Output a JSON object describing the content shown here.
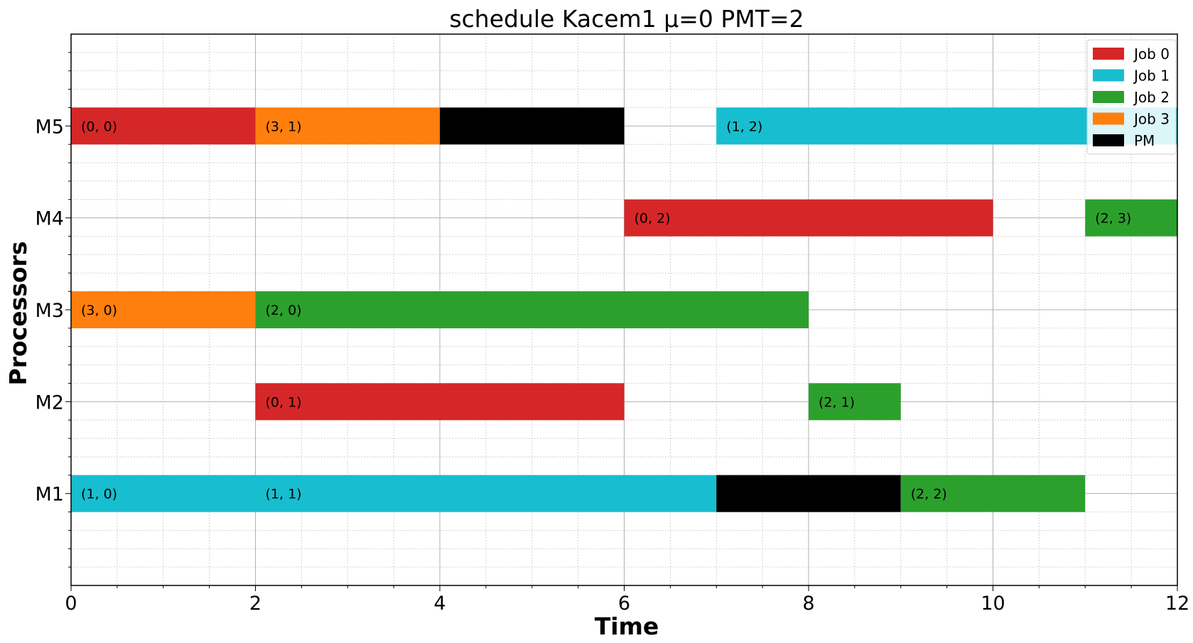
{
  "chart_data": {
    "type": "gantt",
    "title": "schedule Kacem1 μ=0 PMT=2",
    "xlabel": "Time",
    "ylabel": "Processors",
    "xlim": [
      0,
      12
    ],
    "x_ticks": [
      "0",
      "2",
      "4",
      "6",
      "8",
      "10",
      "12"
    ],
    "processors": [
      "M1",
      "M2",
      "M3",
      "M4",
      "M5"
    ],
    "grid": "major and minor",
    "legend_position": "top-right",
    "legend": [
      {
        "label": "Job 0",
        "color": "#d62728"
      },
      {
        "label": "Job 1",
        "color": "#17becf"
      },
      {
        "label": "Job 2",
        "color": "#2ca02c"
      },
      {
        "label": "Job 3",
        "color": "#ff7f0e"
      },
      {
        "label": "PM",
        "color": "#000000"
      }
    ],
    "tasks": [
      {
        "processor": "M5",
        "start": 0,
        "end": 2,
        "job": "Job 0",
        "label": "(0, 0)"
      },
      {
        "processor": "M5",
        "start": 2,
        "end": 4,
        "job": "Job 3",
        "label": "(3, 1)"
      },
      {
        "processor": "M5",
        "start": 4,
        "end": 6,
        "job": "PM",
        "label": ""
      },
      {
        "processor": "M5",
        "start": 7,
        "end": 12,
        "job": "Job 1",
        "label": "(1, 2)"
      },
      {
        "processor": "M4",
        "start": 6,
        "end": 10,
        "job": "Job 0",
        "label": "(0, 2)"
      },
      {
        "processor": "M4",
        "start": 11,
        "end": 12,
        "job": "Job 2",
        "label": "(2, 3)"
      },
      {
        "processor": "M3",
        "start": 0,
        "end": 2,
        "job": "Job 3",
        "label": "(3, 0)"
      },
      {
        "processor": "M3",
        "start": 2,
        "end": 8,
        "job": "Job 2",
        "label": "(2, 0)"
      },
      {
        "processor": "M2",
        "start": 2,
        "end": 6,
        "job": "Job 0",
        "label": "(0, 1)"
      },
      {
        "processor": "M2",
        "start": 8,
        "end": 9,
        "job": "Job 2",
        "label": "(2, 1)"
      },
      {
        "processor": "M1",
        "start": 0,
        "end": 2,
        "job": "Job 1",
        "label": "(1, 0)"
      },
      {
        "processor": "M1",
        "start": 2,
        "end": 7,
        "job": "Job 1",
        "label": "(1, 1)"
      },
      {
        "processor": "M1",
        "start": 7,
        "end": 9,
        "job": "PM",
        "label": ""
      },
      {
        "processor": "M1",
        "start": 9,
        "end": 11,
        "job": "Job 2",
        "label": "(2, 2)"
      }
    ]
  }
}
